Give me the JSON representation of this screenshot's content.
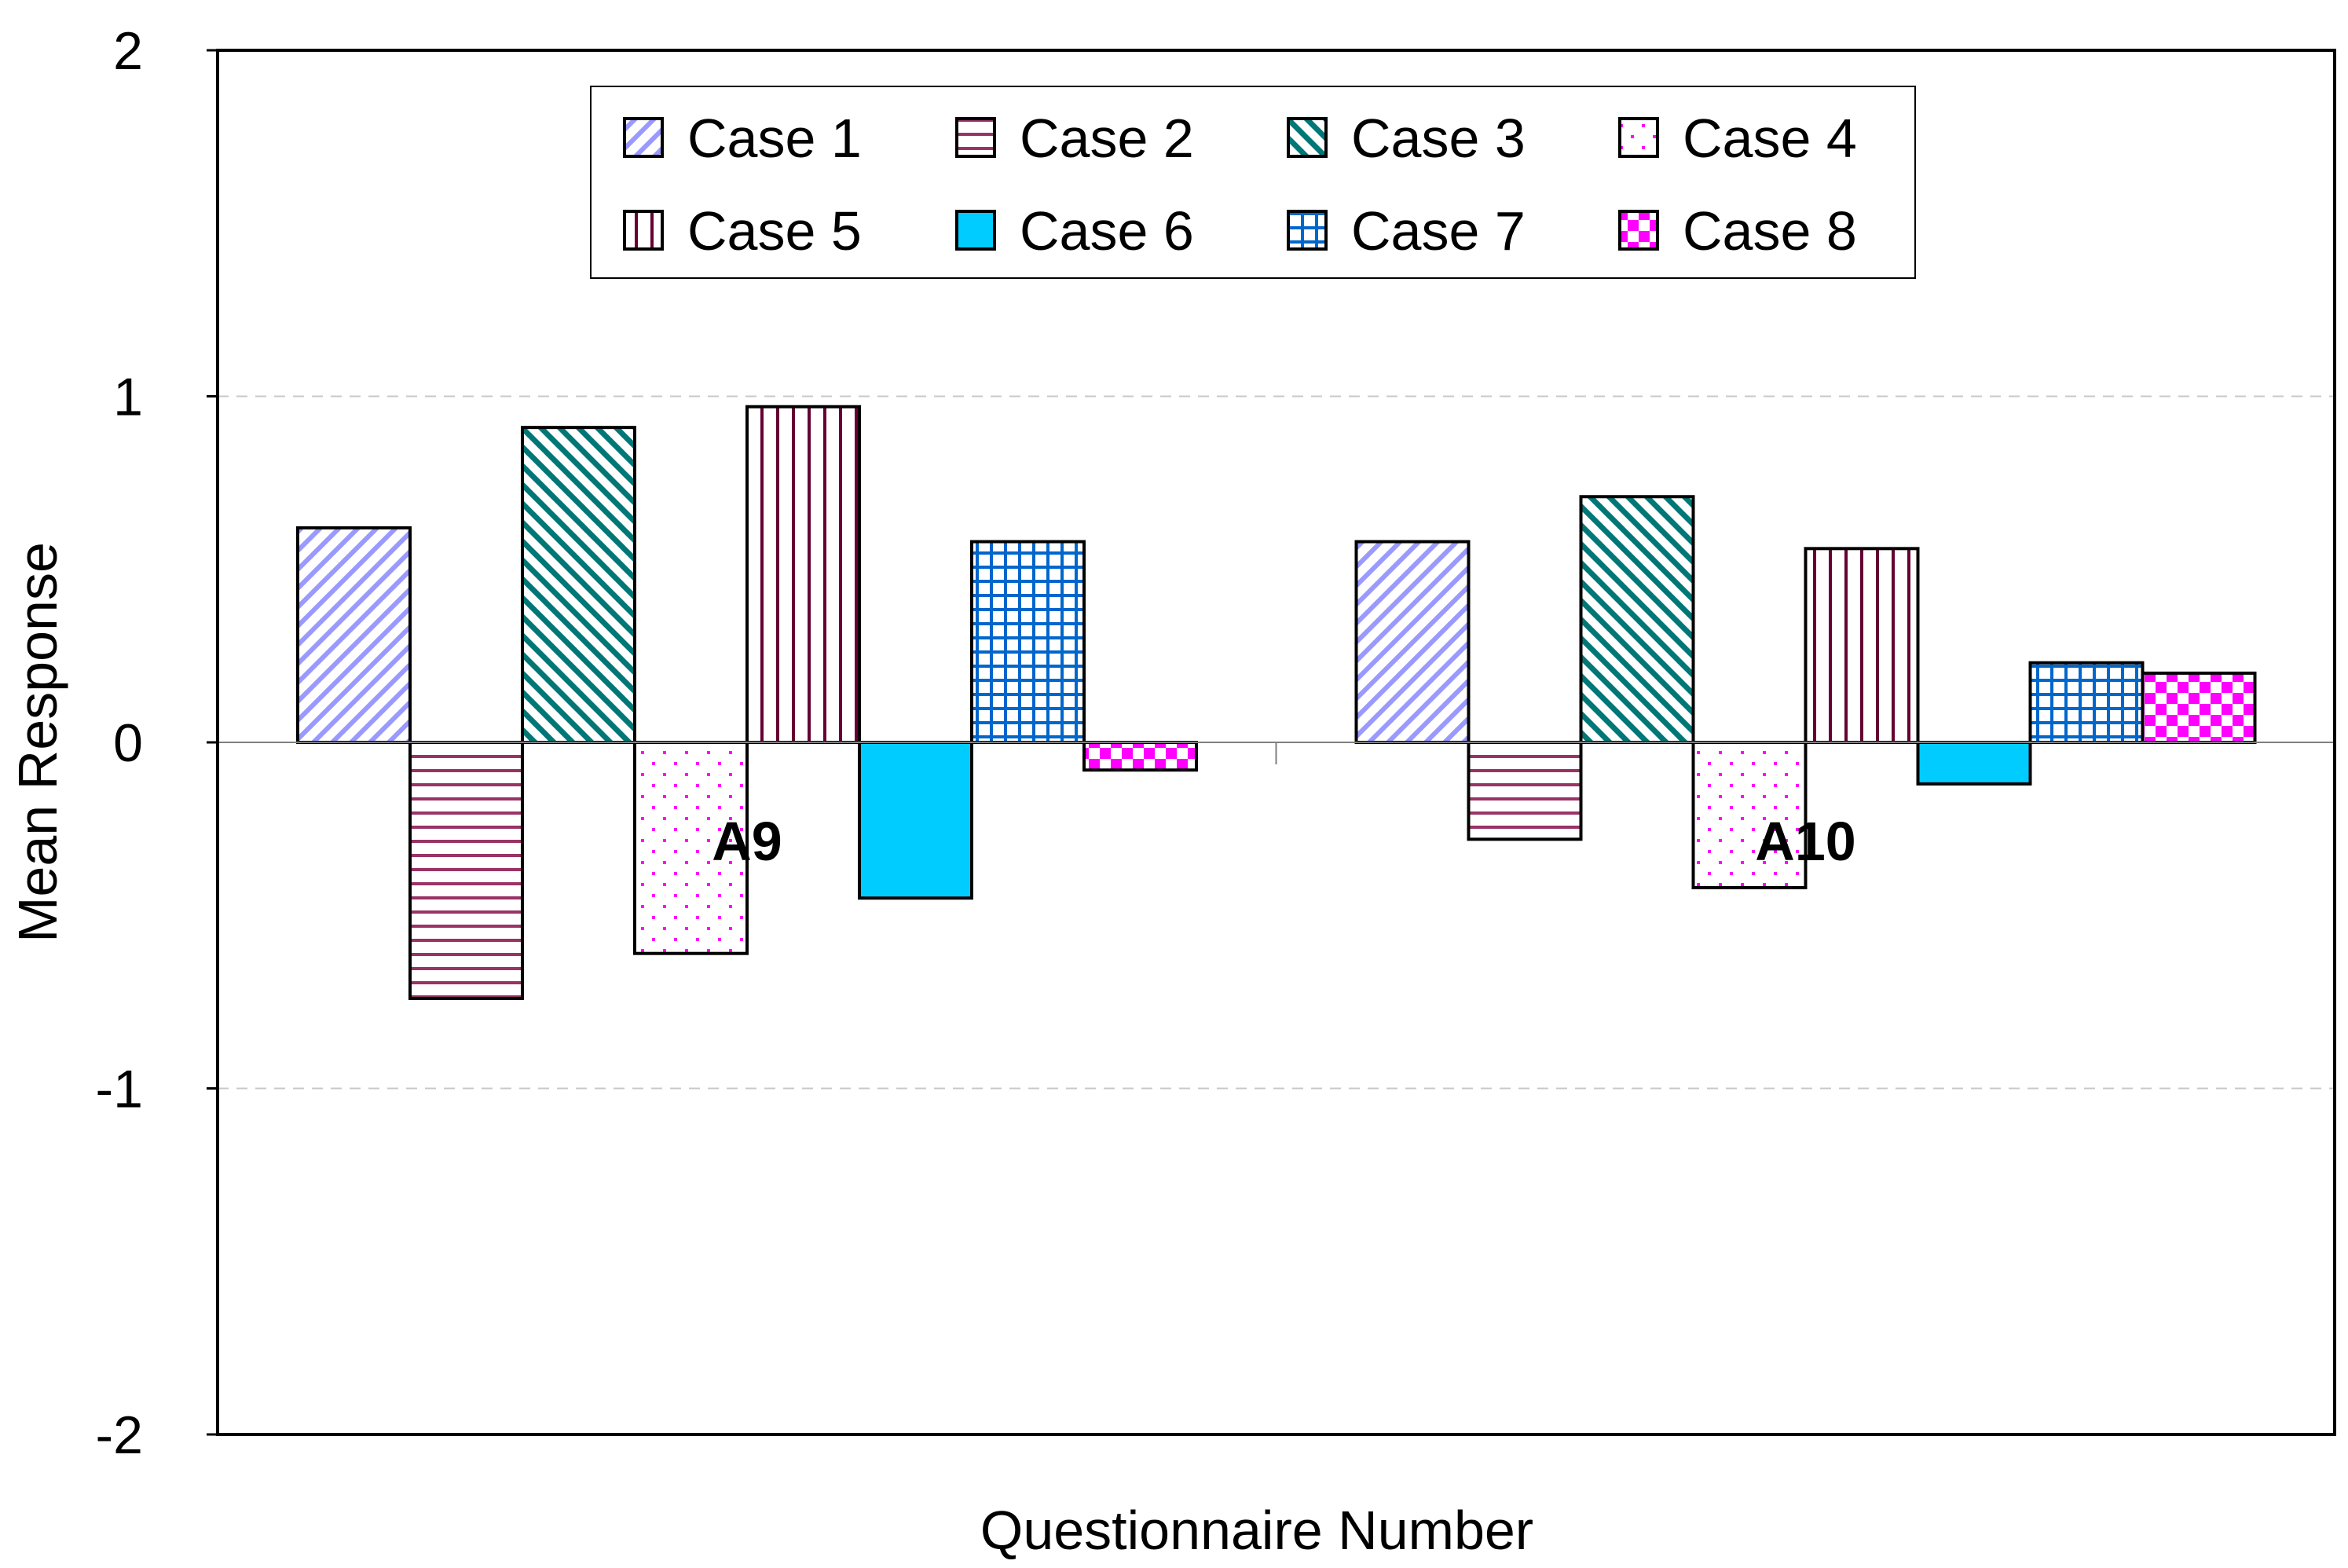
{
  "chart_data": {
    "type": "bar",
    "title": "",
    "xlabel": "Questionnaire Number",
    "ylabel": "Mean Response",
    "ylim": [
      -2,
      2
    ],
    "yticks": [
      2,
      1,
      0,
      -1,
      -2
    ],
    "ytick_labels": [
      "2",
      "1",
      "0",
      "-1",
      "-2"
    ],
    "grid": true,
    "legend_position": "top-center",
    "categories": [
      "A9",
      "A10"
    ],
    "series": [
      {
        "name": "Case 1",
        "values": [
          0.62,
          0.58
        ],
        "color": "#9999ff",
        "pattern": "diag-up"
      },
      {
        "name": "Case 2",
        "values": [
          -0.74,
          -0.28
        ],
        "color": "#993366",
        "pattern": "horiz"
      },
      {
        "name": "Case 3",
        "values": [
          0.91,
          0.71
        ],
        "color": "#007777",
        "pattern": "diag-down"
      },
      {
        "name": "Case 4",
        "values": [
          -0.61,
          -0.42
        ],
        "color": "#ff00ff",
        "pattern": "dots"
      },
      {
        "name": "Case 5",
        "values": [
          0.97,
          0.56
        ],
        "color": "#660033",
        "pattern": "vert"
      },
      {
        "name": "Case 6",
        "values": [
          -0.45,
          -0.12
        ],
        "color": "#00ccff",
        "pattern": "solid"
      },
      {
        "name": "Case 7",
        "values": [
          0.58,
          0.23
        ],
        "color": "#0066cc",
        "pattern": "grid"
      },
      {
        "name": "Case 8",
        "values": [
          -0.08,
          0.2
        ],
        "color": "#ff00ff",
        "pattern": "checker"
      }
    ]
  }
}
